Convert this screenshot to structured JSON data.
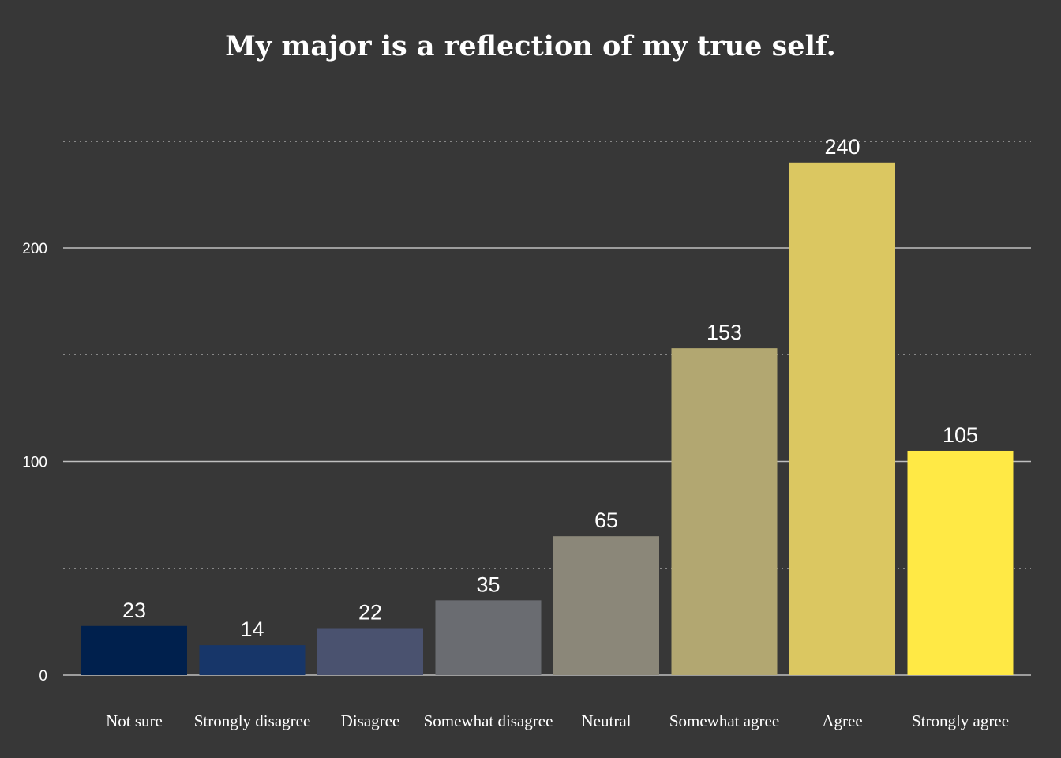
{
  "chart_data": {
    "type": "bar",
    "title": "My major is a reflection of my true self.",
    "xlabel": "",
    "ylabel": "",
    "categories": [
      "Not sure",
      "Strongly disagree",
      "Disagree",
      "Somewhat disagree",
      "Neutral",
      "Somewhat agree",
      "Agree",
      "Strongly agree"
    ],
    "values": [
      23,
      14,
      22,
      35,
      65,
      153,
      240,
      105
    ],
    "colors": [
      "#00204d",
      "#173669",
      "#4a526f",
      "#6a6c71",
      "#8b8779",
      "#b2a771",
      "#dbc761",
      "#ffe945"
    ],
    "ylim": [
      0,
      250
    ],
    "yticks": [
      0,
      100,
      200
    ],
    "minor_gridlines": [
      50,
      150,
      250
    ],
    "background": "#373737",
    "grid_color": "#bfbfbf",
    "legend": "none"
  }
}
